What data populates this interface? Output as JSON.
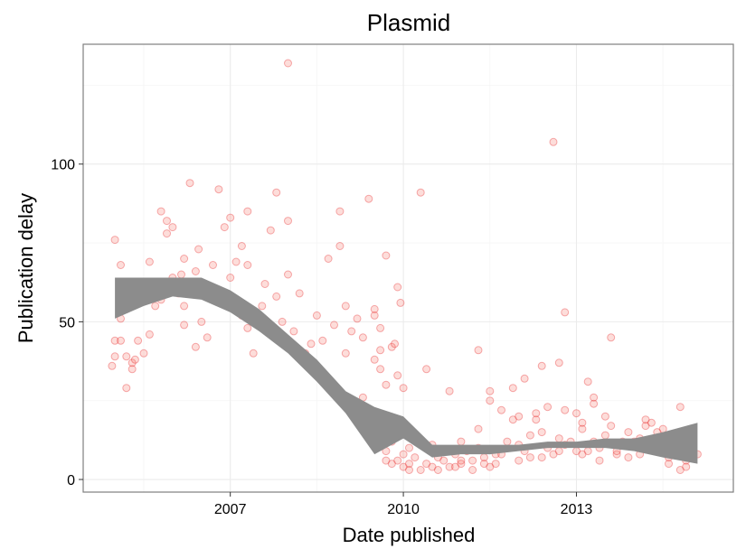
{
  "chart_data": {
    "type": "scatter",
    "title": "Plasmid",
    "xlabel": "Date published",
    "ylabel": "Publication delay",
    "x_ticks": [
      {
        "value": 2007,
        "label": "2007"
      },
      {
        "value": 2010,
        "label": "2010"
      },
      {
        "value": 2013,
        "label": "2013"
      }
    ],
    "y_ticks": [
      {
        "value": 0,
        "label": "0"
      },
      {
        "value": 50,
        "label": "50"
      },
      {
        "value": 100,
        "label": "100"
      }
    ],
    "xlim": [
      2004.45,
      2015.72
    ],
    "ylim": [
      -4,
      138
    ],
    "grid": true,
    "point_color": "#e41a1c",
    "smooth_color": "#8c8c8c",
    "smooth": {
      "x": [
        2005.0,
        2005.5,
        2006.0,
        2006.5,
        2007.0,
        2007.5,
        2008.0,
        2008.5,
        2009.0,
        2009.5,
        2010.0,
        2010.5,
        2011.0,
        2011.5,
        2012.0,
        2012.5,
        2013.0,
        2013.5,
        2014.0,
        2014.5,
        2015.1
      ],
      "lower": [
        51,
        55,
        58,
        57,
        53,
        47,
        40,
        31,
        21,
        8,
        13,
        7,
        8,
        8,
        9,
        10,
        10,
        10,
        9,
        7,
        5
      ],
      "upper": [
        64,
        64,
        64,
        64,
        60,
        54,
        46,
        38,
        28,
        23,
        20,
        11,
        11,
        11,
        11,
        12,
        12,
        13,
        13,
        15,
        18
      ]
    },
    "points": [
      [
        2005.0,
        76
      ],
      [
        2005.0,
        44
      ],
      [
        2005.1,
        60
      ],
      [
        2005.1,
        68
      ],
      [
        2005.2,
        54
      ],
      [
        2005.1,
        51
      ],
      [
        2004.95,
        36
      ],
      [
        2005.0,
        39
      ],
      [
        2005.2,
        29
      ],
      [
        2005.2,
        39
      ],
      [
        2005.3,
        35
      ],
      [
        2005.3,
        37
      ],
      [
        2005.35,
        38
      ],
      [
        2005.1,
        44
      ],
      [
        2005.4,
        44
      ],
      [
        2005.5,
        40
      ],
      [
        2005.6,
        46
      ],
      [
        2005.7,
        55
      ],
      [
        2005.6,
        69
      ],
      [
        2005.8,
        57
      ],
      [
        2005.8,
        60
      ],
      [
        2005.8,
        85
      ],
      [
        2005.9,
        78
      ],
      [
        2005.9,
        82
      ],
      [
        2006.0,
        80
      ],
      [
        2006.0,
        64
      ],
      [
        2006.1,
        59
      ],
      [
        2006.15,
        65
      ],
      [
        2006.2,
        70
      ],
      [
        2006.2,
        55
      ],
      [
        2006.2,
        49
      ],
      [
        2006.4,
        66
      ],
      [
        2006.45,
        73
      ],
      [
        2006.4,
        42
      ],
      [
        2006.5,
        50
      ],
      [
        2006.6,
        45
      ],
      [
        2006.5,
        62
      ],
      [
        2006.7,
        68
      ],
      [
        2006.8,
        60
      ],
      [
        2006.8,
        92
      ],
      [
        2006.3,
        94
      ],
      [
        2006.9,
        58
      ],
      [
        2006.9,
        80
      ],
      [
        2007.0,
        83
      ],
      [
        2007.0,
        64
      ],
      [
        2007.1,
        55
      ],
      [
        2007.1,
        69
      ],
      [
        2007.2,
        52
      ],
      [
        2007.2,
        74
      ],
      [
        2007.3,
        85
      ],
      [
        2007.3,
        68
      ],
      [
        2007.3,
        48
      ],
      [
        2007.4,
        40
      ],
      [
        2007.5,
        51
      ],
      [
        2007.55,
        55
      ],
      [
        2007.6,
        62
      ],
      [
        2007.7,
        79
      ],
      [
        2007.8,
        91
      ],
      [
        2007.8,
        58
      ],
      [
        2007.9,
        50
      ],
      [
        2008.0,
        65
      ],
      [
        2008.0,
        82
      ],
      [
        2008.1,
        47
      ],
      [
        2008.2,
        59
      ],
      [
        2008.3,
        40
      ],
      [
        2008.4,
        43
      ],
      [
        2008.5,
        52
      ],
      [
        2008.6,
        44
      ],
      [
        2008.7,
        70
      ],
      [
        2008.8,
        49
      ],
      [
        2008.9,
        85
      ],
      [
        2008.9,
        74
      ],
      [
        2008.0,
        132
      ],
      [
        2009.0,
        55
      ],
      [
        2009.0,
        40
      ],
      [
        2009.1,
        47
      ],
      [
        2009.2,
        51
      ],
      [
        2009.3,
        45
      ],
      [
        2009.4,
        89
      ],
      [
        2009.5,
        52
      ],
      [
        2009.5,
        54
      ],
      [
        2009.6,
        41
      ],
      [
        2009.6,
        48
      ],
      [
        2009.7,
        71
      ],
      [
        2009.8,
        42
      ],
      [
        2009.85,
        43
      ],
      [
        2009.9,
        33
      ],
      [
        2009.9,
        61
      ],
      [
        2009.95,
        56
      ],
      [
        2009.3,
        26
      ],
      [
        2009.5,
        38
      ],
      [
        2009.6,
        35
      ],
      [
        2009.7,
        30
      ],
      [
        2009.5,
        17
      ],
      [
        2009.6,
        14
      ],
      [
        2009.7,
        9
      ],
      [
        2009.8,
        12
      ],
      [
        2009.9,
        6
      ],
      [
        2010.0,
        8
      ],
      [
        2010.0,
        4
      ],
      [
        2010.1,
        10
      ],
      [
        2010.1,
        5
      ],
      [
        2010.2,
        7
      ],
      [
        2010.3,
        3
      ],
      [
        2010.3,
        12
      ],
      [
        2010.4,
        5
      ],
      [
        2010.5,
        4
      ],
      [
        2010.5,
        11
      ],
      [
        2010.6,
        7
      ],
      [
        2010.7,
        6
      ],
      [
        2010.8,
        4
      ],
      [
        2010.9,
        8
      ],
      [
        2011.0,
        12
      ],
      [
        2011.1,
        9
      ],
      [
        2011.0,
        5
      ],
      [
        2011.2,
        6
      ],
      [
        2011.3,
        10
      ],
      [
        2011.3,
        16
      ],
      [
        2011.4,
        7
      ],
      [
        2011.5,
        25
      ],
      [
        2011.5,
        28
      ],
      [
        2011.6,
        5
      ],
      [
        2011.7,
        8
      ],
      [
        2011.8,
        12
      ],
      [
        2011.9,
        19
      ],
      [
        2012.0,
        20
      ],
      [
        2012.0,
        11
      ],
      [
        2012.1,
        9
      ],
      [
        2012.2,
        7
      ],
      [
        2012.2,
        14
      ],
      [
        2012.3,
        19
      ],
      [
        2012.4,
        15
      ],
      [
        2012.5,
        10
      ],
      [
        2012.5,
        23
      ],
      [
        2012.6,
        8
      ],
      [
        2012.7,
        13
      ],
      [
        2012.8,
        11
      ],
      [
        2012.9,
        12
      ],
      [
        2013.0,
        9
      ],
      [
        2013.0,
        21
      ],
      [
        2013.1,
        16
      ],
      [
        2013.1,
        18
      ],
      [
        2013.2,
        9
      ],
      [
        2013.2,
        31
      ],
      [
        2013.3,
        24
      ],
      [
        2013.3,
        12
      ],
      [
        2013.4,
        10
      ],
      [
        2013.5,
        14
      ],
      [
        2013.6,
        17
      ],
      [
        2013.7,
        8
      ],
      [
        2013.8,
        12
      ],
      [
        2013.9,
        15
      ],
      [
        2014.0,
        11
      ],
      [
        2014.1,
        13
      ],
      [
        2014.2,
        17
      ],
      [
        2014.3,
        18
      ],
      [
        2014.4,
        9
      ],
      [
        2014.5,
        16
      ],
      [
        2014.6,
        10
      ],
      [
        2014.7,
        12
      ],
      [
        2014.8,
        23
      ],
      [
        2014.9,
        6
      ],
      [
        2015.0,
        7
      ],
      [
        2015.1,
        8
      ],
      [
        2015.0,
        14
      ],
      [
        2014.8,
        3
      ],
      [
        2014.6,
        5
      ],
      [
        2014.9,
        9
      ],
      [
        2010.3,
        91
      ],
      [
        2012.6,
        107
      ],
      [
        2012.8,
        53
      ],
      [
        2011.3,
        41
      ],
      [
        2013.6,
        45
      ],
      [
        2012.7,
        37
      ],
      [
        2012.4,
        36
      ],
      [
        2012.1,
        32
      ],
      [
        2011.9,
        29
      ],
      [
        2012.3,
        21
      ],
      [
        2011.7,
        22
      ],
      [
        2010.4,
        35
      ],
      [
        2010.0,
        29
      ],
      [
        2010.8,
        28
      ],
      [
        2012.8,
        22
      ],
      [
        2013.3,
        26
      ],
      [
        2013.5,
        20
      ],
      [
        2014.2,
        19
      ],
      [
        2014.0,
        12
      ],
      [
        2014.4,
        15
      ],
      [
        2013.9,
        7
      ],
      [
        2011.5,
        4
      ],
      [
        2011.2,
        3
      ],
      [
        2010.6,
        3
      ],
      [
        2010.1,
        3
      ],
      [
        2009.8,
        5
      ],
      [
        2009.7,
        6
      ],
      [
        2010.9,
        4
      ],
      [
        2011.0,
        6
      ],
      [
        2011.4,
        5
      ],
      [
        2011.6,
        8
      ],
      [
        2012.0,
        6
      ],
      [
        2012.4,
        7
      ],
      [
        2012.7,
        9
      ],
      [
        2013.1,
        8
      ],
      [
        2013.4,
        6
      ],
      [
        2013.7,
        9
      ],
      [
        2014.1,
        8
      ],
      [
        2014.6,
        7
      ],
      [
        2014.9,
        4
      ]
    ]
  }
}
